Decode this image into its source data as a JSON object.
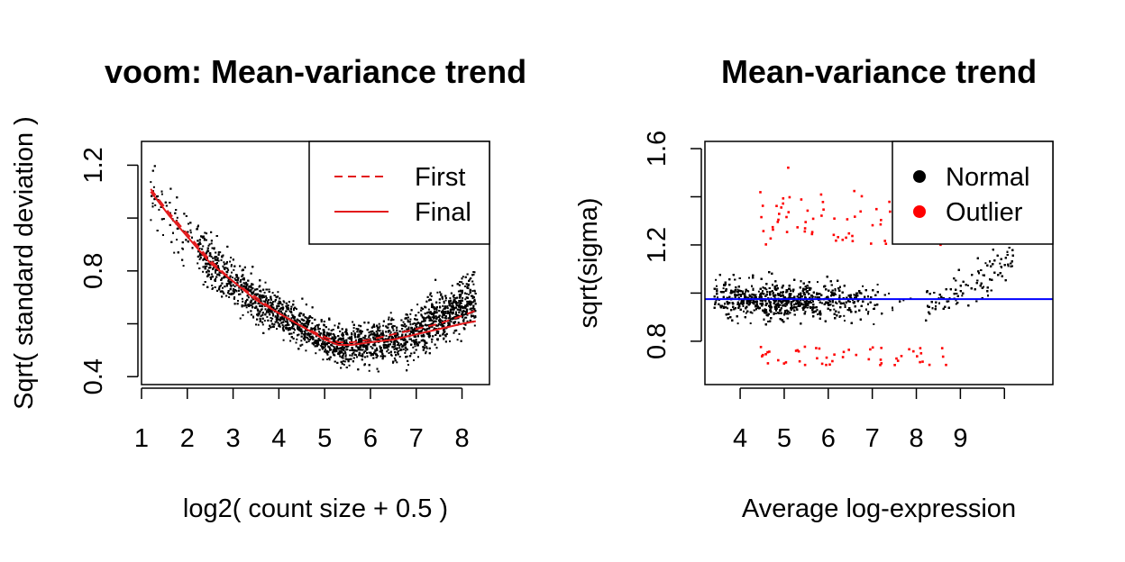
{
  "colors": {
    "points": "#000000",
    "trend": "#e31a1c",
    "outlier": "#ff0000",
    "hline": "#0000ff"
  },
  "chart_data": [
    {
      "type": "scatter",
      "title": "voom: Mean-variance trend",
      "xlabel": "log2( count size + 0.5 )",
      "ylabel": "Sqrt( standard deviation )",
      "xlim": [
        1.0,
        8.6
      ],
      "ylim": [
        0.37,
        1.29
      ],
      "xticks": [
        1,
        2,
        3,
        4,
        5,
        6,
        7,
        8
      ],
      "yticks": [
        0.4,
        0.6,
        0.8,
        1.0,
        1.2
      ],
      "ytick_labels": [
        "0.4",
        "",
        "0.8",
        "",
        "1.2"
      ],
      "legend": {
        "position": "top-right",
        "entries": [
          "First",
          "Final"
        ]
      },
      "series": [
        {
          "name": "First",
          "style": "dashed",
          "x": [
            1.2,
            1.6,
            2.0,
            2.5,
            3.0,
            3.5,
            4.0,
            4.5,
            5.0,
            5.3,
            5.6,
            6.0,
            6.5,
            7.0,
            7.5,
            8.0,
            8.3
          ],
          "y": [
            1.11,
            1.02,
            0.94,
            0.84,
            0.76,
            0.7,
            0.64,
            0.59,
            0.55,
            0.53,
            0.53,
            0.54,
            0.56,
            0.58,
            0.6,
            0.63,
            0.65
          ]
        },
        {
          "name": "Final",
          "style": "solid",
          "x": [
            1.2,
            1.6,
            2.0,
            2.5,
            3.0,
            3.5,
            4.0,
            4.5,
            5.0,
            5.3,
            5.6,
            6.0,
            6.5,
            7.0,
            7.5,
            8.0,
            8.3
          ],
          "y": [
            1.1,
            1.01,
            0.93,
            0.83,
            0.76,
            0.69,
            0.64,
            0.59,
            0.54,
            0.52,
            0.52,
            0.53,
            0.54,
            0.56,
            0.58,
            0.6,
            0.61
          ]
        }
      ]
    },
    {
      "type": "scatter",
      "title": "Mean-variance trend",
      "xlabel": "Average log-expression",
      "ylabel": "sqrt(sigma)",
      "xlim": [
        3.2,
        11.1
      ],
      "ylim": [
        0.62,
        1.63
      ],
      "xticks": [
        4,
        5,
        6,
        7,
        8,
        9,
        10
      ],
      "xtick_labels": [
        "4",
        "5",
        "6",
        "7",
        "8",
        "9",
        ""
      ],
      "yticks": [
        0.8,
        1.0,
        1.2,
        1.4,
        1.6
      ],
      "ytick_labels": [
        "0.8",
        "",
        "1.2",
        "",
        "1.6"
      ],
      "hline": 0.975,
      "legend": {
        "position": "top-right",
        "entries": [
          "Normal",
          "Outlier"
        ]
      }
    }
  ]
}
